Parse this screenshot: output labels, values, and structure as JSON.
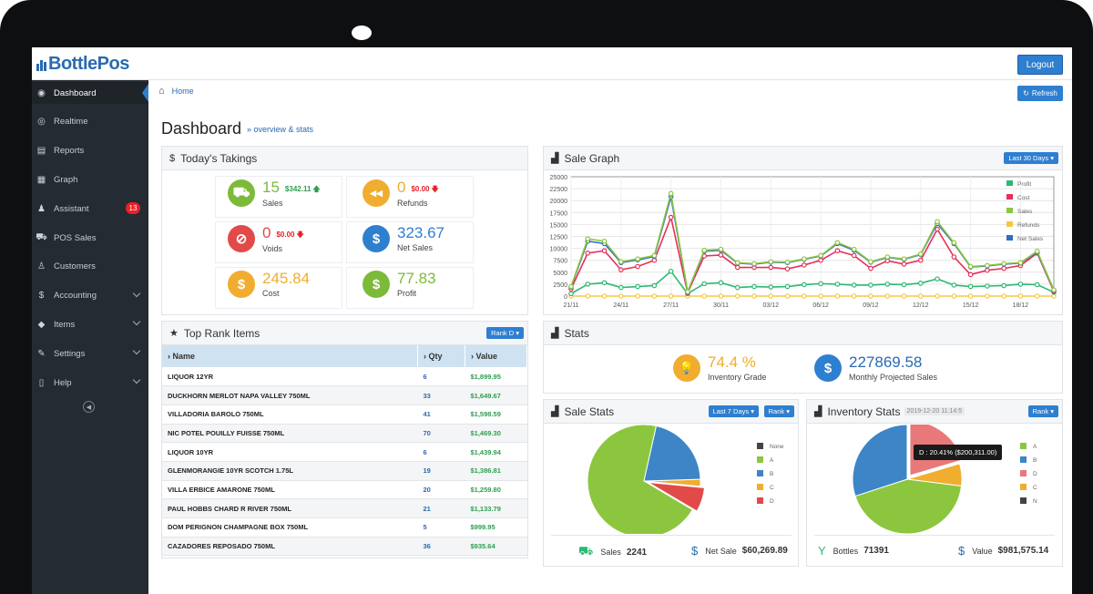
{
  "app": {
    "name": "BottlePos",
    "logout": "Logout",
    "refresh": "Refresh",
    "collapse_symbol": "◀"
  },
  "breadcrumb": {
    "home": "Home"
  },
  "page": {
    "title": "Dashboard",
    "subtitle": "overview & stats"
  },
  "sidebar": {
    "items": [
      {
        "label": "Dashboard",
        "icon": "dashboard-icon",
        "glyph": "◉"
      },
      {
        "label": "Realtime",
        "icon": "eye-icon",
        "glyph": "◎"
      },
      {
        "label": "Reports",
        "icon": "report-icon",
        "glyph": "▤"
      },
      {
        "label": "Graph",
        "icon": "graph-icon",
        "glyph": "▦"
      },
      {
        "label": "Assistant",
        "icon": "user-icon",
        "glyph": "♟",
        "badge": "13"
      },
      {
        "label": "POS Sales",
        "icon": "cart-icon",
        "glyph": "⛟"
      },
      {
        "label": "Customers",
        "icon": "customer-icon",
        "glyph": "♙"
      },
      {
        "label": "Accounting",
        "icon": "dollar-icon",
        "glyph": "$"
      },
      {
        "label": "Items",
        "icon": "tag-icon",
        "glyph": "◆"
      },
      {
        "label": "Settings",
        "icon": "settings-icon",
        "glyph": "✎"
      },
      {
        "label": "Help",
        "icon": "help-icon",
        "glyph": "▯"
      }
    ]
  },
  "takings": {
    "title": "Today's Takings",
    "sales": {
      "value": "15",
      "label": "Sales",
      "delta": "$342.11",
      "arrow": "🡅",
      "glyph": "⛟",
      "color": "#7cba3a"
    },
    "refunds": {
      "value": "0",
      "label": "Refunds",
      "delta": "$0.00",
      "arrow": "🡇",
      "glyph": "◀◀",
      "color": "#f0ad2f"
    },
    "voids": {
      "value": "0",
      "label": "Voids",
      "delta": "$0.00",
      "arrow": "🡇",
      "glyph": "⊘",
      "color": "#e24a4a"
    },
    "net": {
      "value": "323.67",
      "label": "Net Sales",
      "glyph": "$",
      "color": "#2e7fd0"
    },
    "cost": {
      "value": "245.84",
      "label": "Cost",
      "glyph": "$",
      "color": "#f0ad2f"
    },
    "profit": {
      "value": "77.83",
      "label": "Profit",
      "glyph": "$",
      "color": "#7cba3a"
    }
  },
  "rank": {
    "title": "Top Rank Items",
    "button": "Rank D",
    "headers": [
      "Name",
      "Qty",
      "Value"
    ],
    "rows": [
      [
        "LIQUOR 12YR",
        "6",
        "$1,899.95"
      ],
      [
        "DUCKHORN MERLOT NAPA VALLEY 750ML",
        "33",
        "$1,649.67"
      ],
      [
        "VILLADORIA BAROLO 750ML",
        "41",
        "$1,598.59"
      ],
      [
        "NIC POTEL POUILLY FUISSE 750ML",
        "70",
        "$1,469.30"
      ],
      [
        "LIQUOR 10YR",
        "6",
        "$1,439.94"
      ],
      [
        "GLENMORANGIE 10YR SCOTCH 1.75L",
        "19",
        "$1,386.81"
      ],
      [
        "VILLA ERBICE AMARONE 750ML",
        "20",
        "$1,259.80"
      ],
      [
        "PAUL HOBBS CHARD R RIVER 750ML",
        "21",
        "$1,133.79"
      ],
      [
        "DOM PERIGNON CHAMPAGNE BOX 750ML",
        "5",
        "$999.95"
      ],
      [
        "CAZADORES REPOSADO 750ML",
        "36",
        "$935.64"
      ]
    ]
  },
  "sale_graph": {
    "title": "Sale Graph",
    "button": "Last 30 Days"
  },
  "chart_data": [
    {
      "type": "line",
      "title": "Sale Graph",
      "ylim": [
        0,
        25000
      ],
      "yticks": [
        "0",
        "2500",
        "5000",
        "7500",
        "10000",
        "12500",
        "15000",
        "17500",
        "20000",
        "22500",
        "25000"
      ],
      "xticks": [
        "21/11",
        "24/11",
        "27/11",
        "30/11",
        "03/12",
        "06/12",
        "09/12",
        "12/12",
        "15/12",
        "18/12"
      ],
      "series": [
        {
          "name": "Profit",
          "color": "#2eb872",
          "values": [
            500,
            2500,
            2800,
            1800,
            2000,
            2200,
            5200,
            500,
            2600,
            2800,
            1800,
            2000,
            1900,
            2000,
            2400,
            2600,
            2500,
            2300,
            2300,
            2500,
            2400,
            2700,
            3600,
            2300,
            2000,
            2100,
            2200,
            2500,
            2400,
            800
          ]
        },
        {
          "name": "Cost",
          "color": "#e8305a",
          "values": [
            1500,
            9000,
            9500,
            5500,
            6200,
            7500,
            16500,
            700,
            8400,
            8600,
            6000,
            6000,
            6000,
            5700,
            6500,
            7500,
            9500,
            8500,
            5800,
            7400,
            6700,
            7500,
            14000,
            8200,
            4500,
            5400,
            5800,
            6400,
            9000,
            1000
          ]
        },
        {
          "name": "Sales",
          "color": "#8cc63f",
          "values": [
            2000,
            12000,
            11500,
            7200,
            7800,
            8500,
            21500,
            900,
            9600,
            9800,
            7000,
            6800,
            7200,
            7100,
            7800,
            8500,
            11200,
            9800,
            7200,
            8200,
            7800,
            8800,
            15600,
            11200,
            6200,
            6400,
            6800,
            7000,
            9400,
            1300
          ]
        },
        {
          "name": "Refunds",
          "color": "#f5c842",
          "values": [
            0,
            0,
            0,
            0,
            0,
            0,
            0,
            0,
            0,
            0,
            0,
            0,
            0,
            0,
            0,
            0,
            0,
            0,
            0,
            0,
            0,
            0,
            0,
            0,
            0,
            0,
            0,
            0,
            0,
            0
          ]
        },
        {
          "name": "Net Sales",
          "color": "#2e6fc0",
          "values": [
            1900,
            11500,
            11000,
            7000,
            7600,
            8300,
            20800,
            850,
            9400,
            9600,
            6900,
            6700,
            7100,
            7000,
            7700,
            8400,
            11000,
            9600,
            7100,
            8100,
            7700,
            8700,
            15200,
            11000,
            6100,
            6300,
            6700,
            6900,
            9200,
            1200
          ]
        }
      ]
    },
    {
      "type": "pie",
      "title": "Sale Stats",
      "legend": [
        "None",
        "A",
        "B",
        "C",
        "D"
      ],
      "slices": [
        {
          "name": "None",
          "value": 0,
          "color": "#444444"
        },
        {
          "name": "A",
          "value": 70,
          "color": "#8cc63f"
        },
        {
          "name": "B",
          "value": 21,
          "color": "#3d85c6"
        },
        {
          "name": "C",
          "value": 2,
          "color": "#f0ad2f"
        },
        {
          "name": "D",
          "value": 7,
          "color": "#e24a4a"
        }
      ]
    },
    {
      "type": "pie",
      "title": "Inventory Stats",
      "legend": [
        "A",
        "B",
        "D",
        "C",
        "N"
      ],
      "slices": [
        {
          "name": "A",
          "value": 43,
          "color": "#8cc63f"
        },
        {
          "name": "B",
          "value": 30,
          "color": "#3d85c6"
        },
        {
          "name": "D",
          "value": 20.41,
          "color": "#e8787a"
        },
        {
          "name": "C",
          "value": 6.59,
          "color": "#f0ad2f"
        },
        {
          "name": "N",
          "value": 0,
          "color": "#444444"
        }
      ]
    }
  ],
  "stats": {
    "title": "Stats",
    "grade": {
      "value": "74.4 %",
      "label": "Inventory Grade",
      "glyph": "💡",
      "color": "#f0ad2f"
    },
    "projected": {
      "value": "227869.58",
      "label": "Monthly Projected Sales",
      "glyph": "$",
      "color": "#2e7fd0"
    }
  },
  "sale_stats": {
    "title": "Sale Stats",
    "button1": "Last 7 Days",
    "button2": "Rank",
    "sales_label": "Sales",
    "sales_value": "2241",
    "net_label": "Net Sale",
    "net_value": "$60,269.89"
  },
  "inventory_stats": {
    "title": "Inventory Stats",
    "timestamp": "2019-12-20 11:14:5",
    "button": "Rank",
    "tooltip": "D : 20.41% ($200,311.00)",
    "bottles_label": "Bottles",
    "bottles_value": "71391",
    "value_label": "Value",
    "value_value": "$981,575.14"
  }
}
